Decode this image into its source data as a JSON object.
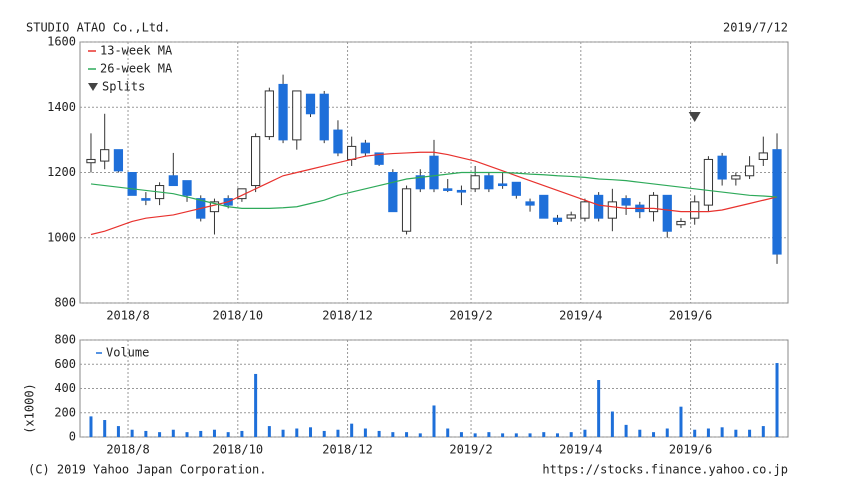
{
  "header": {
    "title": "STUDIO ATAO Co.,Ltd.",
    "date": "2019/7/12"
  },
  "footer": {
    "copyright": "(C) 2019 Yahoo Japan Corporation.",
    "url": "https://stocks.finance.yahoo.co.jp"
  },
  "chart_data": [
    {
      "type": "candlestick",
      "categories": [
        null,
        null,
        null,
        "2018/8",
        null,
        null,
        null,
        null,
        null,
        null,
        null,
        "2018/10",
        null,
        null,
        null,
        null,
        null,
        null,
        null,
        "2018/12",
        null,
        null,
        null,
        null,
        null,
        null,
        null,
        null,
        "2019/2",
        null,
        null,
        null,
        null,
        null,
        null,
        null,
        "2019/4",
        null,
        null,
        null,
        null,
        null,
        null,
        null,
        "2019/6",
        null,
        null,
        null,
        null,
        null,
        null
      ],
      "open": [
        1230,
        1235,
        1270,
        1200,
        1120,
        1120,
        1190,
        1175,
        1120,
        1080,
        1120,
        1120,
        1160,
        1310,
        1470,
        1300,
        1440,
        1440,
        1330,
        1240,
        1290,
        1260,
        1200,
        1020,
        1190,
        1250,
        1150,
        1145,
        1150,
        1190,
        1165,
        1170,
        1110,
        1130,
        1060,
        1060,
        1060,
        1130,
        1060,
        1120,
        1100,
        1080,
        1130,
        1040,
        1060,
        1100,
        1250,
        1180,
        1190,
        1240,
        1270
      ],
      "high": [
        1320,
        1380,
        1270,
        1200,
        1140,
        1170,
        1260,
        1175,
        1130,
        1120,
        1130,
        1150,
        1320,
        1460,
        1500,
        1450,
        1440,
        1450,
        1360,
        1310,
        1300,
        1260,
        1210,
        1160,
        1210,
        1300,
        1180,
        1160,
        1220,
        1200,
        1200,
        1170,
        1120,
        1130,
        1070,
        1080,
        1120,
        1140,
        1150,
        1130,
        1110,
        1140,
        1130,
        1060,
        1130,
        1250,
        1260,
        1200,
        1250,
        1310,
        1320
      ],
      "low": [
        1200,
        1210,
        1200,
        1130,
        1100,
        1100,
        1160,
        1110,
        1050,
        1010,
        1090,
        1110,
        1140,
        1300,
        1290,
        1270,
        1370,
        1290,
        1250,
        1220,
        1250,
        1220,
        1080,
        1010,
        1140,
        1140,
        1140,
        1100,
        1140,
        1140,
        1150,
        1120,
        1080,
        1060,
        1040,
        1050,
        1050,
        1050,
        1020,
        1070,
        1060,
        1050,
        1000,
        1030,
        1040,
        1080,
        1160,
        1160,
        1180,
        1220,
        920
      ],
      "close": [
        1240,
        1270,
        1205,
        1130,
        1115,
        1160,
        1160,
        1130,
        1060,
        1110,
        1100,
        1150,
        1310,
        1450,
        1300,
        1450,
        1380,
        1300,
        1260,
        1280,
        1260,
        1225,
        1080,
        1150,
        1150,
        1150,
        1145,
        1140,
        1190,
        1150,
        1160,
        1130,
        1100,
        1060,
        1050,
        1070,
        1110,
        1060,
        1110,
        1100,
        1080,
        1130,
        1020,
        1050,
        1110,
        1240,
        1180,
        1190,
        1220,
        1260,
        950
      ],
      "up_color": "#ffffff",
      "down_color": "#1e6fd9",
      "series": [
        {
          "name": "13-week MA",
          "type": "line",
          "color": "#e8322e",
          "values": [
            1010,
            1020,
            1035,
            1050,
            1060,
            1065,
            1070,
            1080,
            1090,
            1100,
            1110,
            1130,
            1150,
            1170,
            1190,
            1200,
            1210,
            1220,
            1230,
            1240,
            1250,
            1255,
            1258,
            1260,
            1262,
            1262,
            1255,
            1245,
            1235,
            1220,
            1205,
            1190,
            1175,
            1160,
            1145,
            1130,
            1115,
            1100,
            1095,
            1090,
            1090,
            1090,
            1085,
            1080,
            1080,
            1080,
            1085,
            1095,
            1105,
            1115,
            1125
          ]
        },
        {
          "name": "26-week MA",
          "type": "line",
          "color": "#2eaa5a",
          "values": [
            1165,
            1160,
            1155,
            1150,
            1145,
            1140,
            1135,
            1125,
            1115,
            1105,
            1095,
            1090,
            1090,
            1090,
            1092,
            1095,
            1105,
            1115,
            1130,
            1140,
            1150,
            1160,
            1170,
            1180,
            1185,
            1190,
            1195,
            1200,
            1200,
            1200,
            1200,
            1198,
            1195,
            1193,
            1190,
            1188,
            1185,
            1180,
            1178,
            1175,
            1170,
            1165,
            1160,
            1155,
            1150,
            1145,
            1140,
            1135,
            1130,
            1128,
            1125
          ]
        },
        {
          "name": "Splits",
          "type": "marker",
          "color": "#444444",
          "values": [
            null,
            null,
            null,
            null,
            null,
            null,
            null,
            null,
            null,
            null,
            null,
            null,
            null,
            null,
            null,
            null,
            null,
            null,
            null,
            null,
            null,
            null,
            null,
            null,
            null,
            null,
            null,
            null,
            null,
            null,
            null,
            null,
            null,
            null,
            null,
            null,
            null,
            null,
            null,
            null,
            null,
            null,
            null,
            null,
            1370,
            null,
            null,
            null,
            null,
            null,
            null
          ]
        }
      ],
      "ylim": [
        800,
        1600
      ],
      "yticks": [
        800,
        1000,
        1200,
        1400,
        1600
      ],
      "grid": true
    },
    {
      "type": "bar",
      "categories": [
        null,
        null,
        null,
        "2018/8",
        null,
        null,
        null,
        null,
        null,
        null,
        null,
        "2018/10",
        null,
        null,
        null,
        null,
        null,
        null,
        null,
        "2018/12",
        null,
        null,
        null,
        null,
        null,
        null,
        null,
        null,
        "2019/2",
        null,
        null,
        null,
        null,
        null,
        null,
        null,
        "2019/4",
        null,
        null,
        null,
        null,
        null,
        null,
        null,
        "2019/6",
        null,
        null,
        null,
        null,
        null,
        null
      ],
      "y_label": "(x1000)",
      "series": [
        {
          "name": "Volume",
          "color": "#1e6fd9",
          "values": [
            170,
            140,
            90,
            60,
            50,
            40,
            60,
            40,
            50,
            60,
            40,
            50,
            520,
            90,
            60,
            70,
            80,
            50,
            60,
            110,
            70,
            50,
            40,
            40,
            30,
            260,
            70,
            40,
            30,
            40,
            30,
            30,
            30,
            40,
            30,
            40,
            60,
            470,
            210,
            100,
            60,
            40,
            70,
            250,
            60,
            70,
            80,
            60,
            60,
            90,
            610
          ]
        }
      ],
      "ylim": [
        0,
        800
      ],
      "yticks": [
        0,
        200,
        400,
        600,
        800
      ],
      "grid": true
    }
  ]
}
